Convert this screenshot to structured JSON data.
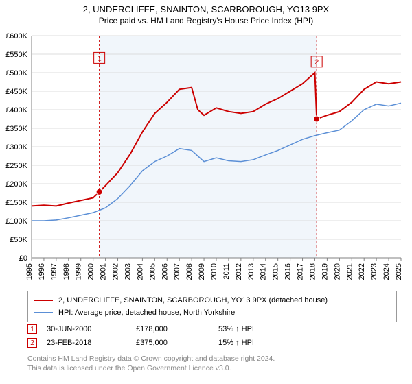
{
  "title": "2, UNDERCLIFFE, SNAINTON, SCARBOROUGH, YO13 9PX",
  "subtitle": "Price paid vs. HM Land Registry's House Price Index (HPI)",
  "chart": {
    "type": "line",
    "background_color": "#ffffff",
    "plot_band_color": "#f1f6fb",
    "grid_color": "#dcdcdc",
    "axis_color": "#808080",
    "x": {
      "min": 1995,
      "max": 2025,
      "ticks": [
        1995,
        1996,
        1997,
        1998,
        1999,
        2000,
        2001,
        2002,
        2003,
        2004,
        2005,
        2006,
        2007,
        2008,
        2009,
        2010,
        2011,
        2012,
        2013,
        2014,
        2015,
        2016,
        2017,
        2018,
        2019,
        2020,
        2021,
        2022,
        2023,
        2024,
        2025
      ],
      "label_fontsize": 11
    },
    "y": {
      "min": 0,
      "max": 600000,
      "ticks": [
        0,
        50000,
        100000,
        150000,
        200000,
        250000,
        300000,
        350000,
        400000,
        450000,
        500000,
        550000,
        600000
      ],
      "tick_labels": [
        "£0",
        "£50K",
        "£100K",
        "£150K",
        "£200K",
        "£250K",
        "£300K",
        "£350K",
        "£400K",
        "£450K",
        "£500K",
        "£550K",
        "£600K"
      ],
      "label_fontsize": 11
    },
    "plot_band": {
      "from": 2000.5,
      "to": 2018.15
    },
    "series": [
      {
        "name": "property",
        "color": "#cc0000",
        "stroke_width": 2,
        "points": [
          [
            1995,
            140000
          ],
          [
            1996,
            142000
          ],
          [
            1997,
            140000
          ],
          [
            1998,
            148000
          ],
          [
            1999,
            155000
          ],
          [
            2000,
            162000
          ],
          [
            2000.5,
            178000
          ],
          [
            2001,
            195000
          ],
          [
            2002,
            230000
          ],
          [
            2003,
            280000
          ],
          [
            2004,
            340000
          ],
          [
            2005,
            390000
          ],
          [
            2006,
            420000
          ],
          [
            2007,
            455000
          ],
          [
            2008,
            460000
          ],
          [
            2008.5,
            400000
          ],
          [
            2009,
            385000
          ],
          [
            2010,
            405000
          ],
          [
            2011,
            395000
          ],
          [
            2012,
            390000
          ],
          [
            2013,
            395000
          ],
          [
            2014,
            415000
          ],
          [
            2015,
            430000
          ],
          [
            2016,
            450000
          ],
          [
            2017,
            470000
          ],
          [
            2018,
            500000
          ],
          [
            2018.15,
            375000
          ],
          [
            2019,
            385000
          ],
          [
            2020,
            395000
          ],
          [
            2021,
            420000
          ],
          [
            2022,
            455000
          ],
          [
            2023,
            475000
          ],
          [
            2024,
            470000
          ],
          [
            2025,
            475000
          ]
        ]
      },
      {
        "name": "hpi",
        "color": "#5b8fd6",
        "stroke_width": 1.5,
        "points": [
          [
            1995,
            100000
          ],
          [
            1996,
            100000
          ],
          [
            1997,
            102000
          ],
          [
            1998,
            108000
          ],
          [
            1999,
            115000
          ],
          [
            2000,
            122000
          ],
          [
            2001,
            135000
          ],
          [
            2002,
            160000
          ],
          [
            2003,
            195000
          ],
          [
            2004,
            235000
          ],
          [
            2005,
            260000
          ],
          [
            2006,
            275000
          ],
          [
            2007,
            295000
          ],
          [
            2008,
            290000
          ],
          [
            2009,
            260000
          ],
          [
            2010,
            270000
          ],
          [
            2011,
            262000
          ],
          [
            2012,
            260000
          ],
          [
            2013,
            265000
          ],
          [
            2014,
            278000
          ],
          [
            2015,
            290000
          ],
          [
            2016,
            305000
          ],
          [
            2017,
            320000
          ],
          [
            2018,
            330000
          ],
          [
            2019,
            338000
          ],
          [
            2020,
            345000
          ],
          [
            2021,
            370000
          ],
          [
            2022,
            400000
          ],
          [
            2023,
            415000
          ],
          [
            2024,
            410000
          ],
          [
            2025,
            418000
          ]
        ]
      }
    ],
    "markers": [
      {
        "id": 1,
        "x": 2000.5,
        "y": 178000,
        "color": "#cc0000",
        "label_y": 540000
      },
      {
        "id": 2,
        "x": 2018.15,
        "y": 375000,
        "color": "#cc0000",
        "label_y": 530000
      }
    ]
  },
  "legend": {
    "items": [
      {
        "color": "#cc0000",
        "label": "2, UNDERCLIFFE, SNAINTON, SCARBOROUGH, YO13 9PX (detached house)"
      },
      {
        "color": "#5b8fd6",
        "label": "HPI: Average price, detached house, North Yorkshire"
      }
    ]
  },
  "events": [
    {
      "n": "1",
      "date": "30-JUN-2000",
      "price": "£178,000",
      "pct": "53% ↑ HPI",
      "color": "#cc0000"
    },
    {
      "n": "2",
      "date": "23-FEB-2018",
      "price": "£375,000",
      "pct": "15% ↑ HPI",
      "color": "#cc0000"
    }
  ],
  "footer_line1": "Contains HM Land Registry data © Crown copyright and database right 2024.",
  "footer_line2": "This data is licensed under the Open Government Licence v3.0."
}
